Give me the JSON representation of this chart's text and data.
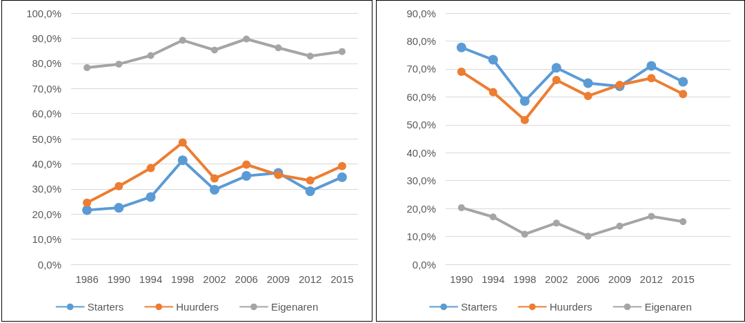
{
  "chart_data": [
    {
      "type": "line",
      "categories": [
        "1986",
        "1990",
        "1994",
        "1998",
        "2002",
        "2006",
        "2009",
        "2012",
        "2015"
      ],
      "series": [
        {
          "name": "Starters",
          "color": "#5b9bd5",
          "values": [
            21.6,
            22.5,
            26.8,
            41.4,
            29.7,
            35.2,
            36.4,
            29.1,
            34.7
          ]
        },
        {
          "name": "Huurders",
          "color": "#ed7d31",
          "values": [
            24.5,
            31.1,
            38.3,
            48.5,
            34.2,
            39.7,
            35.6,
            33.4,
            39.1
          ]
        },
        {
          "name": "Eigenaren",
          "color": "#a5a5a5",
          "values": [
            78.3,
            79.7,
            83.1,
            89.2,
            85.3,
            89.7,
            86.2,
            82.9,
            84.7
          ]
        }
      ],
      "ylim": [
        0,
        100
      ],
      "yticks": [
        {
          "value": 0,
          "label": "0,0%"
        },
        {
          "value": 10,
          "label": "10,0%"
        },
        {
          "value": 20,
          "label": "20,0%"
        },
        {
          "value": 30,
          "label": "30,0%"
        },
        {
          "value": 40,
          "label": "40,0%"
        },
        {
          "value": 50,
          "label": "50,0%"
        },
        {
          "value": 60,
          "label": "60,0%"
        },
        {
          "value": 70,
          "label": "70,0%"
        },
        {
          "value": 80,
          "label": "80,0%"
        },
        {
          "value": 90,
          "label": "90,0%"
        },
        {
          "value": 100,
          "label": "100,0%"
        }
      ],
      "grid": "y",
      "legend": "bottom",
      "marker": "circle",
      "line_style": "solid"
    },
    {
      "type": "line",
      "categories": [
        "1990",
        "1994",
        "1998",
        "2002",
        "2006",
        "2009",
        "2012",
        "2015",
        null
      ],
      "series": [
        {
          "name": "Starters",
          "color": "#5b9bd5",
          "values": [
            77.7,
            73.3,
            58.5,
            70.4,
            64.9,
            63.8,
            71.1,
            65.4,
            null
          ]
        },
        {
          "name": "Huurders",
          "color": "#ed7d31",
          "values": [
            69.0,
            61.7,
            51.7,
            66.0,
            60.3,
            64.3,
            66.7,
            61.0,
            null
          ]
        },
        {
          "name": "Eigenaren",
          "color": "#a5a5a5",
          "values": [
            20.3,
            17.0,
            10.8,
            14.8,
            10.1,
            13.7,
            17.2,
            15.3,
            null
          ]
        }
      ],
      "ylim": [
        0,
        90
      ],
      "yticks": [
        {
          "value": 0,
          "label": "0,0%"
        },
        {
          "value": 10,
          "label": "10,0%"
        },
        {
          "value": 20,
          "label": "20,0%"
        },
        {
          "value": 30,
          "label": "30,0%"
        },
        {
          "value": 40,
          "label": "40,0%"
        },
        {
          "value": 50,
          "label": "50,0%"
        },
        {
          "value": 60,
          "label": "60,0%"
        },
        {
          "value": 70,
          "label": "70,0%"
        },
        {
          "value": 80,
          "label": "80,0%"
        },
        {
          "value": 90,
          "label": "90,0%"
        }
      ],
      "grid": "y",
      "legend": "bottom",
      "marker": "circle",
      "line_style": "solid"
    }
  ]
}
